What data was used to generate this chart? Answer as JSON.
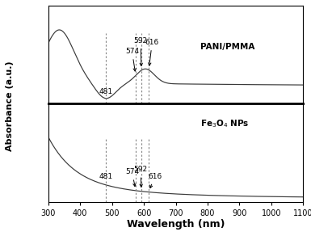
{
  "xlabel": "Wavelength (nm)",
  "ylabel": "Absorbance (a.u.)",
  "xmin": 300,
  "xmax": 1100,
  "label_top": "PANI/PMMA",
  "label_bottom": "Fe$_3$O$_4$ NPs",
  "vlines": [
    481,
    574,
    592,
    616
  ],
  "vline_color": "#888888",
  "bg_color": "#ffffff",
  "line_color": "#3a3a3a",
  "xtick_vals": [
    300,
    400,
    500,
    600,
    700,
    800,
    900,
    1000,
    1100
  ]
}
